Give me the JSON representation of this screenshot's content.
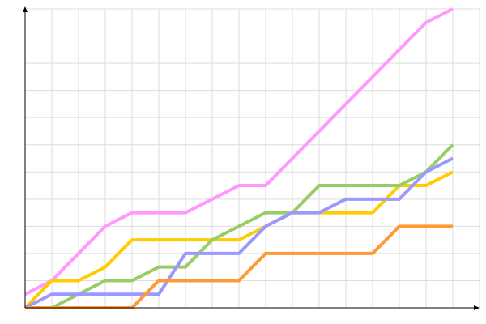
{
  "chart_data": {
    "type": "line",
    "x": [
      0,
      1,
      2,
      3,
      4,
      5,
      6,
      7,
      8,
      9,
      10,
      11,
      12,
      13,
      14,
      15,
      16
    ],
    "series": [
      {
        "color": "#ff99ff",
        "values": [
          0.5,
          1,
          2,
          3,
          3.5,
          3.5,
          3.5,
          4,
          4.5,
          4.5,
          5.5,
          6.5,
          7.5,
          8.5,
          9.5,
          10.5,
          11
        ]
      },
      {
        "color": "#ffcc00",
        "values": [
          0,
          1,
          1,
          1.5,
          2.5,
          2.5,
          2.5,
          2.5,
          2.5,
          3,
          3.5,
          3.5,
          3.5,
          3.5,
          4.5,
          4.5,
          5
        ]
      },
      {
        "color": "#99cc66",
        "values": [
          0,
          0,
          0.5,
          1,
          1,
          1.5,
          1.5,
          2.5,
          3,
          3.5,
          3.5,
          4.5,
          4.5,
          4.5,
          4.5,
          5,
          6
        ]
      },
      {
        "color": "#9999ff",
        "values": [
          0,
          0.5,
          0.5,
          0.5,
          0.5,
          0.5,
          2,
          2,
          2,
          3,
          3.5,
          3.5,
          4,
          4,
          4,
          5,
          5.5
        ]
      },
      {
        "color": "#ff9933",
        "values": [
          0,
          0,
          0,
          0,
          0,
          1,
          1,
          1,
          1,
          2,
          2,
          2,
          2,
          2,
          3,
          3,
          3
        ]
      }
    ],
    "xlim": [
      0,
      17
    ],
    "ylim": [
      0,
      11
    ],
    "xticks": [
      0,
      1,
      2,
      3,
      4,
      5,
      6,
      7,
      8,
      9,
      10,
      11,
      12,
      13,
      14,
      15,
      16,
      17
    ],
    "yticks": [
      0,
      1,
      2,
      3,
      4,
      5,
      6,
      7,
      8,
      9,
      10,
      11
    ],
    "grid": true
  }
}
